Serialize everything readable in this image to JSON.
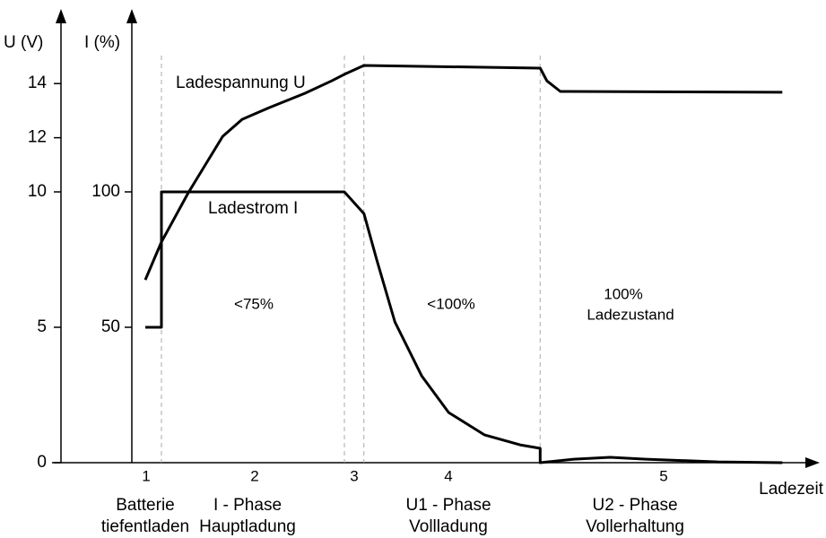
{
  "chart_data": {
    "type": "line",
    "y_label": "U (V)",
    "y2_label": "I (%)",
    "x_label": "Ladezeit",
    "xlim": [
      0,
      100
    ],
    "ylim": [
      0,
      15
    ],
    "yticks": [
      0,
      5,
      10,
      12,
      14
    ],
    "y2lim": [
      0,
      150
    ],
    "y2ticks": [
      50,
      100
    ],
    "grid": false,
    "color": "#000000",
    "series": [
      {
        "name": "Ladespannung U",
        "axis": "y",
        "x": [
          2.0,
          4.4,
          8.4,
          13.5,
          16.4,
          20.4,
          25.7,
          29.7,
          31.6,
          34.5,
          60.7,
          61.7,
          63.7,
          96.7
        ],
        "values": [
          6.75,
          8.15,
          9.97,
          12.05,
          12.68,
          13.11,
          13.64,
          14.1,
          14.34,
          14.67,
          14.57,
          14.1,
          13.71,
          13.68
        ]
      },
      {
        "name": "Ladestrom I",
        "axis": "y2",
        "x": [
          2.0,
          4.4,
          4.4,
          31.6,
          34.5,
          36.4,
          39.1,
          43.1,
          47.1,
          52.4,
          57.7,
          60.7,
          60.7,
          65.7,
          71.1,
          76.4,
          87.1,
          96.7
        ],
        "values": [
          50,
          50,
          100,
          100,
          92,
          75,
          52,
          32,
          18.5,
          10.3,
          6.6,
          5.3,
          0,
          1.3,
          2,
          1.3,
          0.3,
          0
        ]
      }
    ],
    "phase_boundaries": [
      4.4,
      31.6,
      34.5,
      60.7
    ],
    "phase_numbers": [
      "1",
      "2",
      "3",
      "4",
      "5"
    ],
    "phase_labels": [
      [
        "Batterie",
        "tiefentladen"
      ],
      [
        "I - Phase",
        "Hauptladung"
      ],
      [
        "U1 - Phase",
        "Vollladung"
      ],
      [
        "U2 - Phase",
        "Vollerhaltung"
      ]
    ],
    "annotations": [
      "<75%",
      "<100%",
      "100%",
      "Ladezustand"
    ]
  }
}
